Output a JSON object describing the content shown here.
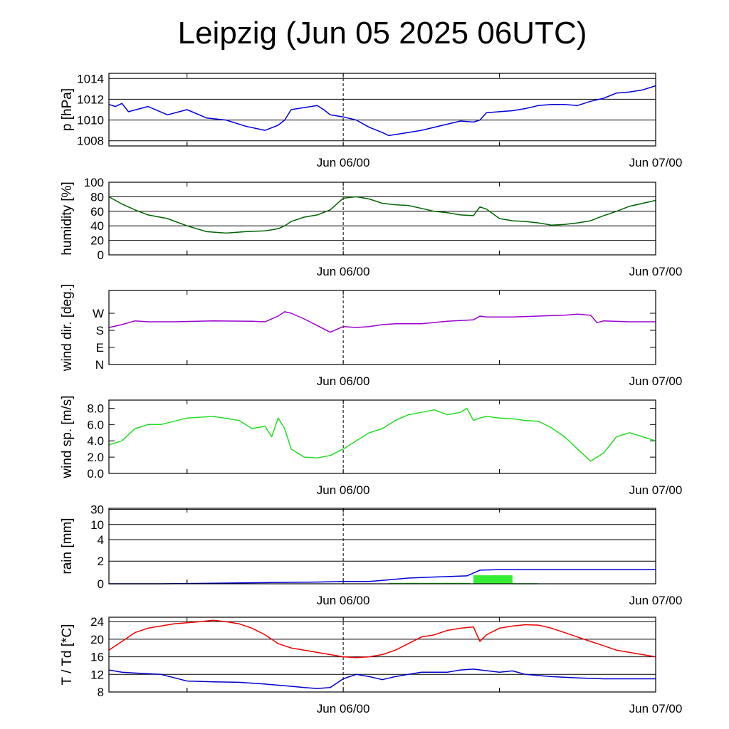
{
  "title": "Leipzig (Jun 05 2025 06UTC)",
  "x_axis": {
    "start": "Jun 05 06UTC",
    "end": "Jun 07 00UTC",
    "hours_span": 42,
    "ticks": [
      "Jun 06/00",
      "Jun 07/00"
    ],
    "reference_line": "Jun 06/00"
  },
  "colors": {
    "pressure": "#0000dd",
    "humidity": "#006400",
    "wind_dir": "#9a00d0",
    "wind_speed": "#22dd22",
    "rain_sum": "#0000dd",
    "rain_bar": "#33ee33",
    "temperature": "#ee0000",
    "dewpoint": "#0000cc"
  },
  "chart_data": [
    {
      "type": "line",
      "ylabel": "p [hPa]",
      "ylim": [
        1007.5,
        1014.5
      ],
      "yticks": [
        "1008",
        "1010",
        "1012",
        "1014"
      ],
      "ytick_values": [
        1008,
        1010,
        1012,
        1014
      ],
      "series": [
        {
          "x": [
            0,
            0.5,
            1,
            1.5,
            3,
            4.5,
            6,
            7.5,
            9,
            10.5,
            12,
            13,
            13.5,
            14,
            15,
            16,
            16.5,
            17,
            18,
            19,
            20,
            21,
            21.5,
            22,
            24,
            26,
            27,
            28,
            28.5,
            29,
            30,
            31,
            32,
            33,
            34,
            35,
            36,
            37,
            38,
            39,
            40,
            41,
            42
          ],
          "y": [
            1011.5,
            1011.3,
            1011.6,
            1010.8,
            1011.3,
            1010.5,
            1011.0,
            1010.2,
            1010.0,
            1009.4,
            1009.0,
            1009.5,
            1010.0,
            1011.0,
            1011.2,
            1011.4,
            1011.0,
            1010.5,
            1010.3,
            1010.0,
            1009.3,
            1008.8,
            1008.5,
            1008.6,
            1009.0,
            1009.6,
            1009.9,
            1009.8,
            1010.0,
            1010.7,
            1010.8,
            1010.9,
            1011.1,
            1011.4,
            1011.5,
            1011.5,
            1011.4,
            1011.8,
            1012.1,
            1012.6,
            1012.7,
            1012.9,
            1013.3
          ]
        }
      ]
    },
    {
      "type": "line",
      "ylabel": "humidity [%]",
      "ylim": [
        0,
        100
      ],
      "yticks": [
        "0",
        "20",
        "40",
        "60",
        "80",
        "100"
      ],
      "ytick_values": [
        0,
        20,
        40,
        60,
        80,
        100
      ],
      "series": [
        {
          "x": [
            0,
            1,
            2,
            3,
            4.5,
            6,
            7.5,
            9,
            10.5,
            12,
            13,
            13.5,
            14,
            15,
            16,
            17,
            17.5,
            18,
            19,
            20,
            21,
            22,
            23,
            24,
            25,
            26,
            27,
            28,
            28.5,
            29,
            30,
            31,
            32,
            33,
            34,
            35,
            36,
            37,
            38,
            39,
            40,
            41,
            42
          ],
          "y": [
            80,
            70,
            62,
            55,
            50,
            40,
            32,
            30,
            32,
            33,
            36,
            40,
            46,
            52,
            55,
            62,
            70,
            78,
            80,
            77,
            71,
            69,
            68,
            64,
            60,
            58,
            55,
            54,
            66,
            63,
            50,
            47,
            46,
            44,
            41,
            42,
            44,
            47,
            54,
            60,
            67,
            71,
            75
          ]
        }
      ]
    },
    {
      "type": "line",
      "ylabel": "wind dir. [deg.]",
      "ylim": [
        0,
        390
      ],
      "yticks": [
        "N",
        "S",
        "E",
        "W"
      ],
      "ytick_values": [
        0,
        180,
        90,
        270
      ],
      "series": [
        {
          "x": [
            0,
            1,
            2,
            3,
            5,
            8,
            11,
            12,
            13,
            13.5,
            14,
            15,
            16,
            17,
            18,
            19,
            20,
            21,
            22,
            24,
            26,
            28,
            28.5,
            29,
            31,
            33,
            35,
            36,
            37,
            37.5,
            38,
            40,
            42
          ],
          "y": [
            195,
            210,
            230,
            225,
            225,
            230,
            228,
            225,
            255,
            278,
            270,
            240,
            205,
            170,
            200,
            195,
            200,
            210,
            215,
            215,
            228,
            235,
            255,
            250,
            250,
            255,
            260,
            265,
            260,
            220,
            230,
            225,
            225
          ]
        }
      ]
    },
    {
      "type": "line",
      "ylabel": "wind sp. [m/s]",
      "ylim": [
        0,
        9
      ],
      "yticks": [
        "0.0",
        "2.0",
        "4.0",
        "6.0",
        "8.0"
      ],
      "ytick_values": [
        0,
        2,
        4,
        6,
        8
      ],
      "series": [
        {
          "x": [
            0,
            1,
            2,
            3,
            4,
            6,
            8,
            10,
            11,
            12,
            12.5,
            13,
            13.5,
            14,
            15,
            16,
            17,
            18,
            19,
            20,
            21,
            22,
            23,
            24,
            25,
            26,
            27,
            27.5,
            28,
            28.5,
            29,
            30,
            31,
            32,
            33,
            34,
            35,
            36,
            37,
            38,
            39,
            40,
            41,
            42
          ],
          "y": [
            3.5,
            4.0,
            5.5,
            6.0,
            6.0,
            6.8,
            7.0,
            6.5,
            5.5,
            5.8,
            4.5,
            6.8,
            5.5,
            3.0,
            2.0,
            1.9,
            2.2,
            3.0,
            4.0,
            5.0,
            5.5,
            6.5,
            7.2,
            7.5,
            7.8,
            7.2,
            7.5,
            8.0,
            6.5,
            6.8,
            7.0,
            6.8,
            6.7,
            6.5,
            6.4,
            5.6,
            4.5,
            3.0,
            1.5,
            2.5,
            4.5,
            5.0,
            4.5,
            4.0
          ]
        }
      ]
    },
    {
      "type": "line",
      "ylabel": "rain [mm]",
      "yscale": "nonlinear",
      "yticks": [
        "0",
        "2",
        "4",
        "10",
        "30"
      ],
      "ytick_values": [
        0,
        2,
        4,
        10,
        30
      ],
      "series": [
        {
          "x": [
            0,
            4,
            8,
            12,
            16,
            18,
            20,
            21,
            23,
            25,
            27.5,
            28.5,
            30,
            35,
            42
          ],
          "y": [
            0,
            0,
            0.05,
            0.1,
            0.15,
            0.2,
            0.2,
            0.3,
            0.5,
            0.6,
            0.7,
            1.2,
            1.25,
            1.25,
            1.25
          ]
        }
      ],
      "bars": [
        {
          "x0": 21.5,
          "x1": 27.8,
          "value": 0.08
        },
        {
          "x0": 28.0,
          "x1": 31.0,
          "value": 0.75
        },
        {
          "x0": 31.0,
          "x1": 33.0,
          "value": 0.05
        }
      ]
    },
    {
      "type": "line",
      "ylabel": "T / Td [*C]",
      "ylim": [
        8,
        25
      ],
      "yticks": [
        "8",
        "12",
        "16",
        "20",
        "24"
      ],
      "ytick_values": [
        8,
        12,
        16,
        20,
        24
      ],
      "series": [
        {
          "x": [
            0,
            1,
            2,
            3,
            5,
            7,
            8,
            9,
            10,
            11,
            12,
            13,
            14,
            15,
            16,
            17,
            18,
            19,
            20,
            21,
            22,
            23,
            24,
            25,
            26,
            27,
            28,
            28.5,
            29,
            30,
            31,
            32,
            33,
            34,
            35,
            36,
            37,
            38,
            39,
            40,
            41,
            42
          ],
          "y": [
            17.5,
            19.5,
            21.5,
            22.5,
            23.5,
            24.0,
            24.3,
            24.0,
            23.5,
            22.5,
            21.0,
            19.0,
            18.0,
            17.5,
            17.0,
            16.5,
            16.0,
            15.8,
            16.0,
            16.5,
            17.5,
            19.0,
            20.5,
            21.0,
            22.0,
            22.5,
            22.8,
            19.5,
            21.0,
            22.5,
            23.0,
            23.3,
            23.2,
            22.5,
            21.5,
            20.5,
            19.5,
            18.5,
            17.5,
            17.0,
            16.5,
            16.0
          ]
        },
        {
          "x": [
            0,
            1,
            2,
            4,
            6,
            8,
            10,
            12,
            14,
            15,
            16,
            17,
            18,
            19,
            20,
            21,
            22,
            23,
            24,
            26,
            27,
            28,
            30,
            31,
            32,
            34,
            36,
            38,
            40,
            42
          ],
          "y": [
            13.0,
            12.5,
            12.3,
            12.0,
            10.5,
            10.3,
            10.2,
            9.8,
            9.3,
            9.0,
            8.8,
            9.0,
            11.0,
            12.0,
            11.5,
            10.8,
            11.5,
            12.0,
            12.5,
            12.5,
            13.0,
            13.2,
            12.5,
            12.8,
            12.0,
            11.5,
            11.2,
            11.0,
            11.0,
            11.0
          ]
        }
      ]
    }
  ]
}
